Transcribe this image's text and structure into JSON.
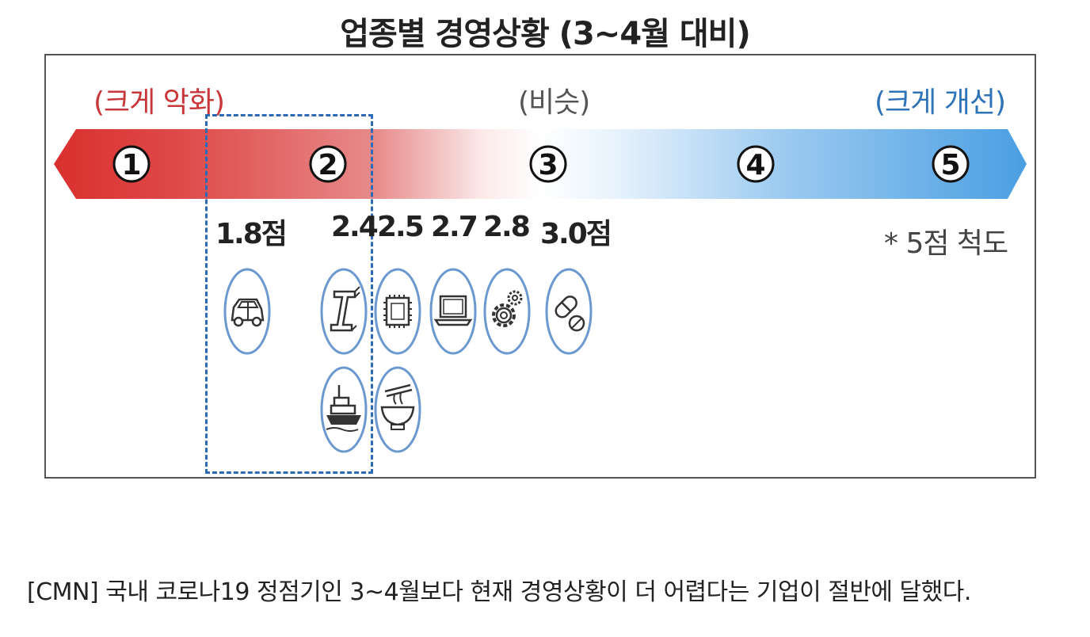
{
  "title": "업종별 경영상황 (3~4월 대비)",
  "scale": {
    "left_label": "(크게 악화)",
    "middle_label": "(비슷)",
    "right_label": "(크게 개선)",
    "points": [
      "1",
      "2",
      "3",
      "4",
      "5"
    ],
    "note": "* 5점 척도",
    "colors": {
      "worse": "#d9302e",
      "better": "#4a9fe2"
    }
  },
  "scores": [
    "1.8점",
    "2.4",
    "2.5",
    "2.7",
    "2.8",
    "3.0점"
  ],
  "icons": [
    "car-icon",
    "steel-beam-icon",
    "ship-icon",
    "chip-icon",
    "food-bowl-icon",
    "laptop-icon",
    "gear-icon",
    "pill-icon"
  ],
  "caption": "[CMN] 국내 코로나19 정점기인 3~4월보다 현재 경영상황이 더 어렵다는 기업이 절반에 달했다."
}
